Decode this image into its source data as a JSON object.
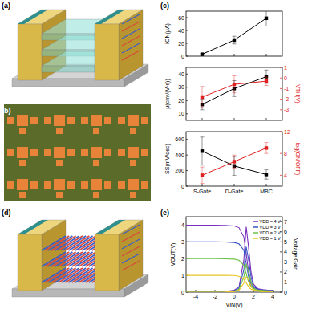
{
  "figure": {
    "panel_labels": [
      "(a)",
      "(b)",
      "(d)"
    ]
  },
  "chart_data": [
    {
      "type": "line",
      "title": "(c)",
      "categories": [
        null,
        null,
        null
      ],
      "ylabel": "ION(μA)",
      "ylim": [
        0,
        70
      ],
      "yticks": [
        0,
        20,
        40,
        60
      ],
      "series": [
        {
          "color": "#000000",
          "marker": "square",
          "values": [
            3,
            25,
            59
          ],
          "errors": [
            1,
            6,
            12
          ]
        }
      ]
    },
    {
      "type": "line",
      "categories": [
        null,
        null,
        null
      ],
      "ylabel": "μ(cm²/(V·s))",
      "ylim": [
        5,
        45
      ],
      "yticks": [
        10,
        20,
        30,
        40
      ],
      "y2label": "VTH(V)",
      "y2lim": [
        -4,
        1
      ],
      "y2ticks": [
        -3,
        -2,
        -1,
        0,
        1
      ],
      "series": [
        {
          "color": "#000000",
          "marker": "square",
          "values": [
            17,
            29,
            38
          ],
          "errors": [
            4,
            6,
            5
          ]
        },
        {
          "color": "#e02020",
          "marker": "square",
          "axis": "y2",
          "values": [
            -1.8,
            -0.6,
            -0.3
          ],
          "errors": [
            1,
            0.8,
            0.4
          ]
        }
      ]
    },
    {
      "type": "line",
      "categories": [
        "S-Gate",
        "D-Gate",
        "MBC"
      ],
      "ylabel": "SS(mV/dec)",
      "ylim": [
        0,
        700
      ],
      "yticks": [
        0,
        200,
        400,
        600
      ],
      "y2label": "log(ON/OFF)",
      "y2lim": [
        2,
        12
      ],
      "y2ticks": [
        4,
        8,
        12
      ],
      "series": [
        {
          "color": "#000000",
          "marker": "square",
          "values": [
            450,
            260,
            150
          ],
          "errors": [
            180,
            120,
            60
          ]
        },
        {
          "color": "#e02020",
          "marker": "square",
          "axis": "y2",
          "values": [
            4,
            6.5,
            9
          ],
          "errors": [
            1.5,
            1.2,
            1
          ]
        }
      ]
    },
    {
      "type": "line",
      "title": "(e)",
      "xlabel": "VIN(V)",
      "ylabel": "VOUT(V)",
      "y2label": "Voltage Gain",
      "legend": "upper right",
      "x": [
        -5,
        -4,
        -3,
        -2,
        -1,
        0,
        0.5,
        1,
        1.25,
        1.5,
        1.75,
        2,
        2.5,
        3,
        3.5,
        4
      ],
      "xlim": [
        -5,
        5
      ],
      "xticks": [
        -4,
        -2,
        0,
        2,
        4
      ],
      "ylim": [
        0,
        4.5
      ],
      "yticks": [
        0,
        1,
        2,
        3,
        4
      ],
      "y2lim": [
        0,
        7.5
      ],
      "y2ticks": [
        0,
        1,
        2,
        3,
        4,
        5,
        6,
        7
      ],
      "series": [
        {
          "name": "VDD = 4 V",
          "color": "#7b2fbe",
          "values": [
            4,
            4,
            4,
            4,
            3.98,
            3.95,
            3.85,
            3.3,
            2.3,
            1.2,
            0.6,
            0.35,
            0.2,
            0.15,
            0.12,
            0.1
          ],
          "gain": [
            0,
            0,
            0,
            0,
            0.05,
            0.2,
            0.5,
            3.2,
            6.5,
            4.4,
            2.0,
            0.8,
            0.3,
            0.1,
            0.05,
            0.02
          ]
        },
        {
          "name": "VDD = 3 V",
          "color": "#3a56c5",
          "values": [
            3,
            3,
            3,
            3,
            2.99,
            2.96,
            2.88,
            2.5,
            1.7,
            0.9,
            0.45,
            0.28,
            0.17,
            0.12,
            0.1,
            0.09
          ],
          "gain": [
            0,
            0,
            0,
            0,
            0.03,
            0.15,
            0.4,
            2.2,
            4.5,
            3.2,
            1.5,
            0.6,
            0.2,
            0.08,
            0.04,
            0.02
          ]
        },
        {
          "name": "VDD = 2 V",
          "color": "#6cc04a",
          "values": [
            2,
            2,
            2,
            2,
            1.99,
            1.97,
            1.9,
            1.6,
            1.1,
            0.6,
            0.32,
            0.2,
            0.13,
            0.1,
            0.08,
            0.07
          ],
          "gain": [
            0,
            0,
            0,
            0,
            0.02,
            0.1,
            0.3,
            1.5,
            2.8,
            2.0,
            1.0,
            0.4,
            0.15,
            0.05,
            0.03,
            0.01
          ]
        },
        {
          "name": "VDD = 1 V",
          "color": "#e8c51e",
          "values": [
            1,
            1,
            1,
            1,
            1,
            0.99,
            0.95,
            0.78,
            0.55,
            0.32,
            0.18,
            0.12,
            0.09,
            0.07,
            0.06,
            0.05
          ],
          "gain": [
            0,
            0,
            0,
            0,
            0.01,
            0.05,
            0.2,
            0.9,
            1.5,
            1.2,
            0.6,
            0.25,
            0.1,
            0.04,
            0.02,
            0.01
          ]
        }
      ]
    }
  ]
}
